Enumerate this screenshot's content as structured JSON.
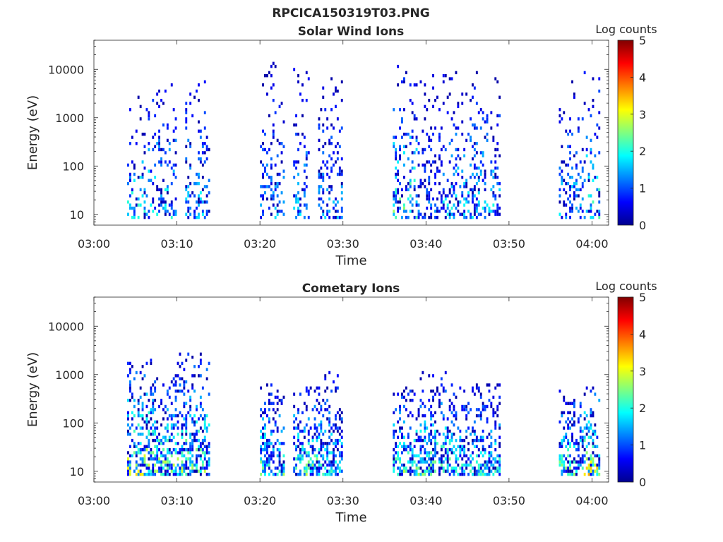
{
  "figure": {
    "title": "RPCICA150319T03.PNG"
  },
  "chart_data": [
    {
      "type": "heatmap",
      "title": "Solar Wind Ions",
      "xlabel": "Time",
      "ylabel": "Energy (eV)",
      "xlim": [
        "03:00",
        "04:02"
      ],
      "ylim": [
        6,
        40000
      ],
      "yscale": "log",
      "xticks": [
        "03:00",
        "03:10",
        "03:20",
        "03:30",
        "03:40",
        "03:50",
        "04:00"
      ],
      "yticks": [
        "10",
        "100",
        "1000",
        "10000"
      ],
      "colorbar": {
        "label": "Log counts",
        "range": [
          0,
          5
        ],
        "ticks": [
          "0",
          "1",
          "2",
          "3",
          "4",
          "5"
        ],
        "colormap": "jet"
      },
      "bursts": [
        {
          "start": "03:04",
          "end": "03:07",
          "energy_range": [
            8,
            3000
          ],
          "peak": 2.6
        },
        {
          "start": "03:07",
          "end": "03:10",
          "energy_range": [
            8,
            8000
          ],
          "peak": 2.3
        },
        {
          "start": "03:11",
          "end": "03:14",
          "energy_range": [
            8,
            6000
          ],
          "peak": 2.2
        },
        {
          "start": "03:20",
          "end": "03:23",
          "energy_range": [
            8,
            14000
          ],
          "peak": 1.8
        },
        {
          "start": "03:24",
          "end": "03:26",
          "energy_range": [
            8,
            12000
          ],
          "peak": 2.0
        },
        {
          "start": "03:27",
          "end": "03:30",
          "energy_range": [
            8,
            12000
          ],
          "peak": 1.8
        },
        {
          "start": "03:36",
          "end": "03:39",
          "energy_range": [
            8,
            13000
          ],
          "peak": 2.8
        },
        {
          "start": "03:39",
          "end": "03:42",
          "energy_range": [
            8,
            8000
          ],
          "peak": 1.5
        },
        {
          "start": "03:42",
          "end": "03:49",
          "energy_range": [
            8,
            9000
          ],
          "peak": 2.2
        },
        {
          "start": "03:56",
          "end": "03:59",
          "energy_range": [
            8,
            8000
          ],
          "peak": 2.0
        },
        {
          "start": "03:59",
          "end": "04:01",
          "energy_range": [
            8,
            10000
          ],
          "peak": 2.6
        }
      ]
    },
    {
      "type": "heatmap",
      "title": "Cometary Ions",
      "xlabel": "Time",
      "ylabel": "Energy (eV)",
      "xlim": [
        "03:00",
        "04:02"
      ],
      "ylim": [
        6,
        40000
      ],
      "yscale": "log",
      "xticks": [
        "03:00",
        "03:10",
        "03:20",
        "03:30",
        "03:40",
        "03:50",
        "04:00"
      ],
      "yticks": [
        "10",
        "100",
        "1000",
        "10000"
      ],
      "colorbar": {
        "label": "Log counts",
        "range": [
          0,
          5
        ],
        "ticks": [
          "0",
          "1",
          "2",
          "3",
          "4",
          "5"
        ],
        "colormap": "jet"
      },
      "bursts": [
        {
          "start": "03:04",
          "end": "03:07",
          "energy_range": [
            8,
            2000
          ],
          "peak": 3.4
        },
        {
          "start": "03:07",
          "end": "03:10",
          "energy_range": [
            8,
            1000
          ],
          "peak": 3.2
        },
        {
          "start": "03:10",
          "end": "03:14",
          "energy_range": [
            8,
            3000
          ],
          "peak": 3.1
        },
        {
          "start": "03:20",
          "end": "03:23",
          "energy_range": [
            8,
            700
          ],
          "peak": 2.8
        },
        {
          "start": "03:24",
          "end": "03:27",
          "energy_range": [
            8,
            700
          ],
          "peak": 3.0
        },
        {
          "start": "03:27",
          "end": "03:30",
          "energy_range": [
            8,
            1200
          ],
          "peak": 2.5
        },
        {
          "start": "03:36",
          "end": "03:39",
          "energy_range": [
            8,
            600
          ],
          "peak": 3.0
        },
        {
          "start": "03:39",
          "end": "03:43",
          "energy_range": [
            8,
            1200
          ],
          "peak": 2.8
        },
        {
          "start": "03:43",
          "end": "03:49",
          "energy_range": [
            8,
            700
          ],
          "peak": 2.5
        },
        {
          "start": "03:56",
          "end": "03:59",
          "energy_range": [
            8,
            500
          ],
          "peak": 2.8
        },
        {
          "start": "03:59",
          "end": "04:01",
          "energy_range": [
            8,
            600
          ],
          "peak": 3.6
        }
      ]
    }
  ]
}
